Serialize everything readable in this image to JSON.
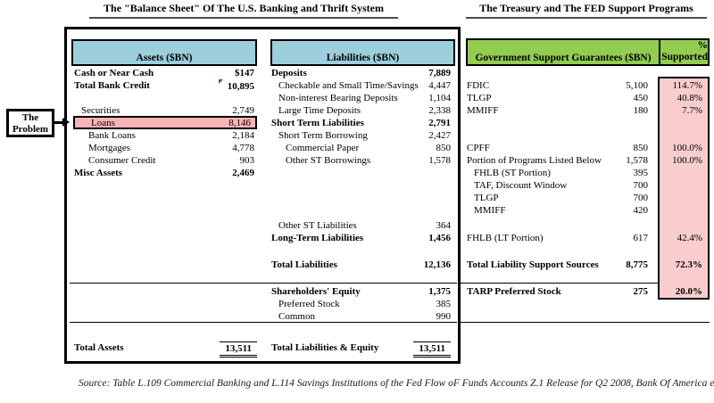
{
  "titles": {
    "left": "The \"Balance Sheet\" Of The U.S. Banking and Thrift System",
    "right": "The Treasury and The FED Support Programs"
  },
  "problem": {
    "line1": "The",
    "line2": "Problem"
  },
  "headers": {
    "assets": "Assets ($BN)",
    "liabilities": "Liabilities ($BN)",
    "gov": "Government Support Guarantees ($BN)",
    "pct_line1": "%",
    "pct_line2": "Supported"
  },
  "assets": {
    "rows": [
      {
        "row": 1,
        "label": "Cash or Near Cash",
        "value": "$147",
        "bold": true,
        "indent": 0
      },
      {
        "row": 2,
        "label": "Total Bank Credit",
        "value": "10,895",
        "bold": true,
        "indent": 0,
        "marker": true
      },
      {
        "row": 4,
        "label": "Securities",
        "value": "2,749",
        "bold": false,
        "indent": 1
      },
      {
        "row": 5,
        "label": "Loans",
        "value": "8,146",
        "bold": false,
        "indent": 1,
        "highlight": true
      },
      {
        "row": 6,
        "label": "Bank Loans",
        "value": "2,184",
        "bold": false,
        "indent": 2
      },
      {
        "row": 7,
        "label": "Mortgages",
        "value": "4,778",
        "bold": false,
        "indent": 2
      },
      {
        "row": 8,
        "label": "Consumer Credit",
        "value": "903",
        "bold": false,
        "indent": 2
      },
      {
        "row": 9,
        "label": "Misc Assets",
        "value": "2,469",
        "bold": true,
        "indent": 0
      },
      {
        "row": 23,
        "label": "Total Assets",
        "value": "13,511",
        "bold": true,
        "indent": 0,
        "total": true
      }
    ]
  },
  "liabilities": {
    "rows": [
      {
        "row": 1,
        "label": "Deposits",
        "value": "7,889",
        "bold": true,
        "indent": 0
      },
      {
        "row": 2,
        "label": "Checkable and Small Time/Savings",
        "value": "4,447",
        "bold": false,
        "indent": 1
      },
      {
        "row": 3,
        "label": "Non-interest Bearing Deposits",
        "value": "1,104",
        "bold": false,
        "indent": 1
      },
      {
        "row": 4,
        "label": "Large Time Deposits",
        "value": "2,338",
        "bold": false,
        "indent": 1
      },
      {
        "row": 5,
        "label": "Short Term Liabilities",
        "value": "2,791",
        "bold": true,
        "indent": 0
      },
      {
        "row": 6,
        "label": "Short Term Borrowing",
        "value": "2,427",
        "bold": false,
        "indent": 1
      },
      {
        "row": 7,
        "label": "Commercial Paper",
        "value": "850",
        "bold": false,
        "indent": 2
      },
      {
        "row": 8,
        "label": "Other ST Borrowings",
        "value": "1,578",
        "bold": false,
        "indent": 2
      },
      {
        "row": 13,
        "label": "Other ST Liabilities",
        "value": "364",
        "bold": false,
        "indent": 1
      },
      {
        "row": 14,
        "label": "Long-Term Liabilities",
        "value": "1,456",
        "bold": true,
        "indent": 0
      },
      {
        "row": 16,
        "label": "Total Liabilities",
        "value": "12,136",
        "bold": true,
        "indent": 0
      },
      {
        "row": 18,
        "label": "Shareholders' Equity",
        "value": "1,375",
        "bold": true,
        "indent": 0
      },
      {
        "row": 19,
        "label": "Preferred Stock",
        "value": "385",
        "bold": false,
        "indent": 1
      },
      {
        "row": 20,
        "label": "Common",
        "value": "990",
        "bold": false,
        "indent": 1
      },
      {
        "row": 23,
        "label": "Total Liabilities & Equity",
        "value": "13,511",
        "bold": true,
        "indent": 0,
        "total": true
      }
    ]
  },
  "support": {
    "rows": [
      {
        "row": 2,
        "label": "FDIC",
        "value": "5,100",
        "pct": "114.7%",
        "bold": false,
        "indent": 0
      },
      {
        "row": 3,
        "label": "TLGP",
        "value": "450",
        "pct": "40.8%",
        "bold": false,
        "indent": 0
      },
      {
        "row": 4,
        "label": "MMIFF",
        "value": "180",
        "pct": "7.7%",
        "bold": false,
        "indent": 0
      },
      {
        "row": 7,
        "label": "CPFF",
        "value": "850",
        "pct": "100.0%",
        "bold": false,
        "indent": 0
      },
      {
        "row": 8,
        "label": "Portion of Programs Listed Below",
        "value": "1,578",
        "pct": "100.0%",
        "bold": false,
        "indent": 0
      },
      {
        "row": 9,
        "label": "FHLB (ST Portion)",
        "value": "395",
        "bold": false,
        "indent": 1
      },
      {
        "row": 10,
        "label": "TAF, Discount Window",
        "value": "700",
        "bold": false,
        "indent": 1
      },
      {
        "row": 11,
        "label": "TLGP",
        "value": "700",
        "bold": false,
        "indent": 1
      },
      {
        "row": 12,
        "label": "MMIFF",
        "value": "420",
        "bold": false,
        "indent": 1
      },
      {
        "row": 14,
        "label": "FHLB (LT Portion)",
        "value": "617",
        "pct": "42.4%",
        "bold": false,
        "indent": 0
      },
      {
        "row": 16,
        "label": "Total Liability Support Sources",
        "value": "8,775",
        "pct": "72.3%",
        "bold": true,
        "indent": 0
      },
      {
        "row": 18,
        "label": "TARP Preferred Stock",
        "value": "275",
        "pct": "20.0%",
        "bold": true,
        "indent": 0
      }
    ]
  },
  "source": "Source: Table L.109 Commercial Banking and L.114 Savings Institutions of the Fed Flow oF Funds Accounts Z.1 Release for Q2 2008, Bank Of America estim",
  "colors": {
    "header_blue": "#9CCEDC",
    "header_green": "#92CC50",
    "highlight_pink": "#F9B3B5",
    "support_column_pink": "#F9CDCD",
    "comment_marker_green": "#1e7d1e"
  }
}
